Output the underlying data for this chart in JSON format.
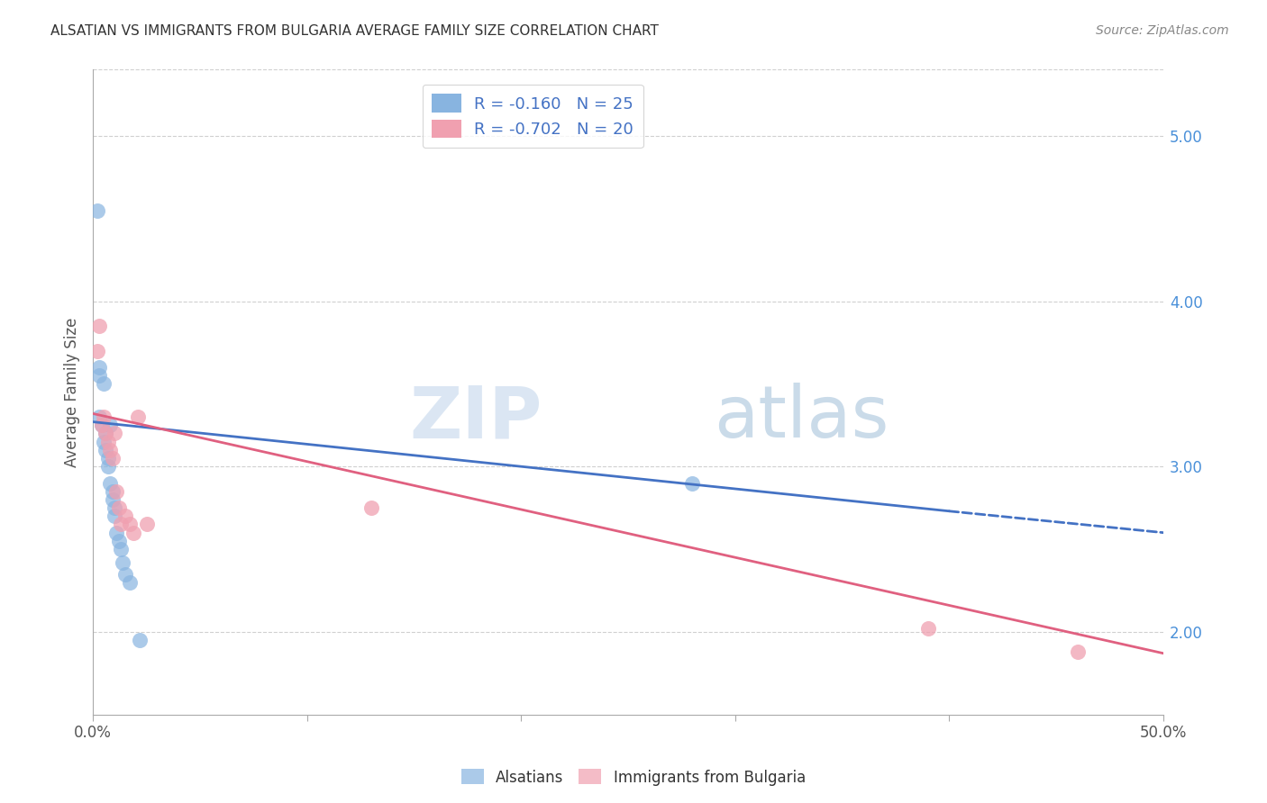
{
  "title": "ALSATIAN VS IMMIGRANTS FROM BULGARIA AVERAGE FAMILY SIZE CORRELATION CHART",
  "source": "Source: ZipAtlas.com",
  "ylabel": "Average Family Size",
  "yticks": [
    2.0,
    3.0,
    4.0,
    5.0
  ],
  "xlim": [
    0.0,
    0.5
  ],
  "ylim": [
    1.5,
    5.4
  ],
  "legend_labels": [
    "Alsatians",
    "Immigrants from Bulgaria"
  ],
  "legend_r_n": [
    {
      "r": "-0.160",
      "n": "25"
    },
    {
      "r": "-0.702",
      "n": "20"
    }
  ],
  "blue_color": "#88b4e0",
  "pink_color": "#f0a0b0",
  "blue_line_color": "#4472c4",
  "pink_line_color": "#e06080",
  "blue_scatter": {
    "x": [
      0.002,
      0.003,
      0.003,
      0.003,
      0.004,
      0.005,
      0.005,
      0.006,
      0.006,
      0.007,
      0.007,
      0.008,
      0.008,
      0.009,
      0.009,
      0.01,
      0.01,
      0.011,
      0.012,
      0.013,
      0.014,
      0.015,
      0.017,
      0.022,
      0.28
    ],
    "y": [
      4.55,
      3.6,
      3.55,
      3.3,
      3.25,
      3.5,
      3.15,
      3.2,
      3.1,
      3.05,
      3.0,
      3.25,
      2.9,
      2.85,
      2.8,
      2.75,
      2.7,
      2.6,
      2.55,
      2.5,
      2.42,
      2.35,
      2.3,
      1.95,
      2.9
    ]
  },
  "pink_scatter": {
    "x": [
      0.002,
      0.003,
      0.004,
      0.005,
      0.006,
      0.007,
      0.008,
      0.009,
      0.01,
      0.011,
      0.012,
      0.013,
      0.015,
      0.017,
      0.019,
      0.021,
      0.025,
      0.13,
      0.39,
      0.46
    ],
    "y": [
      3.7,
      3.85,
      3.25,
      3.3,
      3.2,
      3.15,
      3.1,
      3.05,
      3.2,
      2.85,
      2.75,
      2.65,
      2.7,
      2.65,
      2.6,
      3.3,
      2.65,
      2.75,
      2.02,
      1.88
    ]
  },
  "blue_line": {
    "x0": 0.0,
    "y0": 3.27,
    "x1": 0.4,
    "y1": 2.73
  },
  "blue_dashed_line": {
    "x0": 0.4,
    "y0": 2.73,
    "x1": 0.5,
    "y1": 2.6
  },
  "pink_line": {
    "x0": 0.0,
    "y0": 3.32,
    "x1": 0.5,
    "y1": 1.87
  },
  "watermark_zip": "ZIP",
  "watermark_atlas": "atlas",
  "background_color": "#ffffff",
  "grid_color": "#d0d0d0"
}
